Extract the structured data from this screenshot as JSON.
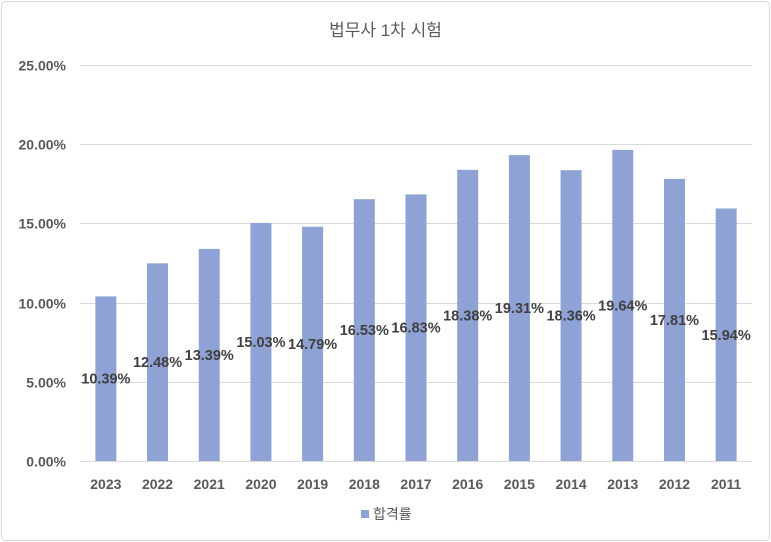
{
  "chart_data": {
    "type": "bar",
    "title": "법무사 1차 시험",
    "xlabel": "",
    "ylabel": "",
    "categories": [
      "2023",
      "2022",
      "2021",
      "2020",
      "2019",
      "2018",
      "2017",
      "2016",
      "2015",
      "2014",
      "2013",
      "2012",
      "2011"
    ],
    "series": [
      {
        "name": "합격률",
        "values": [
          10.39,
          12.48,
          13.39,
          15.03,
          14.79,
          16.53,
          16.83,
          18.38,
          19.31,
          18.36,
          19.64,
          17.81,
          15.94
        ]
      }
    ],
    "value_suffix": "%",
    "ylim": [
      0,
      25
    ],
    "yticks": [
      0,
      5,
      10,
      15,
      20,
      25
    ],
    "ytick_labels": [
      "0.00%",
      "5.00%",
      "10.00%",
      "15.00%",
      "20.00%",
      "25.00%"
    ],
    "grid": true,
    "data_labels_shown": true,
    "legend_position": "bottom",
    "colors": {
      "bar": "#8EA2D5",
      "grid": "#D9D9D9",
      "frame": "#D9D9D9"
    }
  }
}
